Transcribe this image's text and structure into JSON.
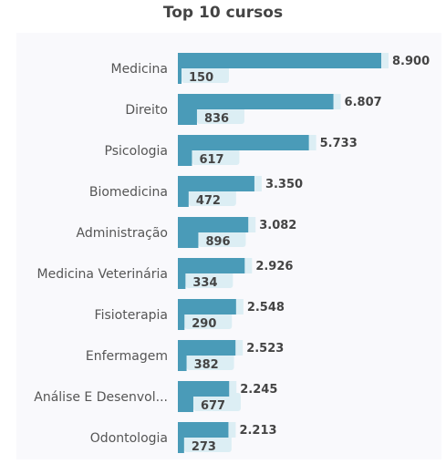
{
  "chart_data": {
    "type": "bar",
    "orientation": "horizontal",
    "title": "Top 10 cursos",
    "categories": [
      "Medicina",
      "Direito",
      "Psicologia",
      "Biomedicina",
      "Administração",
      "Medicina Veterinária",
      "Fisioterapia",
      "Enfermagem",
      "Análise E Desenvol...",
      "Odontologia"
    ],
    "series": [
      {
        "values": [
          8900,
          6807,
          5733,
          3350,
          3082,
          2926,
          2548,
          2523,
          2245,
          2213
        ],
        "labels": [
          "8.900",
          "6.807",
          "5.733",
          "3.350",
          "3.082",
          "2.926",
          "2.548",
          "2.523",
          "2.245",
          "2.213"
        ],
        "color": "#4a9bb8"
      },
      {
        "values": [
          150,
          836,
          617,
          472,
          896,
          334,
          290,
          382,
          677,
          273
        ],
        "labels": [
          "150",
          "836",
          "617",
          "472",
          "896",
          "334",
          "290",
          "382",
          "677",
          "273"
        ],
        "color": "#4a9bb8"
      }
    ],
    "xlim": [
      0,
      9100
    ],
    "grid": false,
    "legend": "none"
  },
  "colors": {
    "bar": "#4a9bb8",
    "label_bg": "#dceef4"
  }
}
